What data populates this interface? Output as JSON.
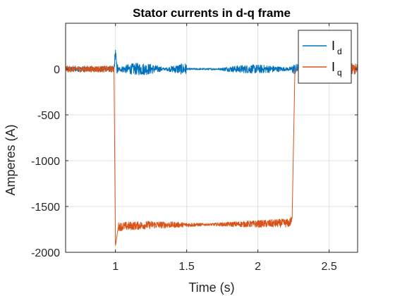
{
  "chart_data": {
    "type": "line",
    "title": "Stator currents in d-q frame",
    "xlabel": "Time (s)",
    "ylabel": "Amperes (A)",
    "xlim": [
      0.65,
      2.7
    ],
    "ylim": [
      -2000,
      500
    ],
    "xticks": [
      1,
      1.5,
      2,
      2.5
    ],
    "xtick_labels": [
      "1",
      "1.5",
      "2",
      "2.5"
    ],
    "yticks": [
      0,
      -500,
      -1000,
      -1500,
      -2000
    ],
    "ytick_labels": [
      "0",
      "-500",
      "-1000",
      "-1500",
      "-2000"
    ],
    "grid": true,
    "legend_position": "top-right",
    "series": [
      {
        "name": "I",
        "subscript": "d",
        "color": "#0072BD",
        "points": [
          [
            0.65,
            0
          ],
          [
            0.99,
            0
          ],
          [
            1.0,
            190
          ],
          [
            1.01,
            0
          ],
          [
            1.5,
            0
          ],
          [
            2.25,
            0
          ],
          [
            2.7,
            0
          ]
        ]
      },
      {
        "name": "I",
        "subscript": "q",
        "color": "#D95319",
        "points": [
          [
            0.65,
            0
          ],
          [
            0.99,
            0
          ],
          [
            1.0,
            -1930
          ],
          [
            1.02,
            -1720
          ],
          [
            1.25,
            -1700
          ],
          [
            1.5,
            -1700
          ],
          [
            2.0,
            -1690
          ],
          [
            2.22,
            -1680
          ],
          [
            2.24,
            -1650
          ],
          [
            2.26,
            0
          ],
          [
            2.3,
            0
          ],
          [
            2.7,
            0
          ]
        ]
      }
    ]
  }
}
